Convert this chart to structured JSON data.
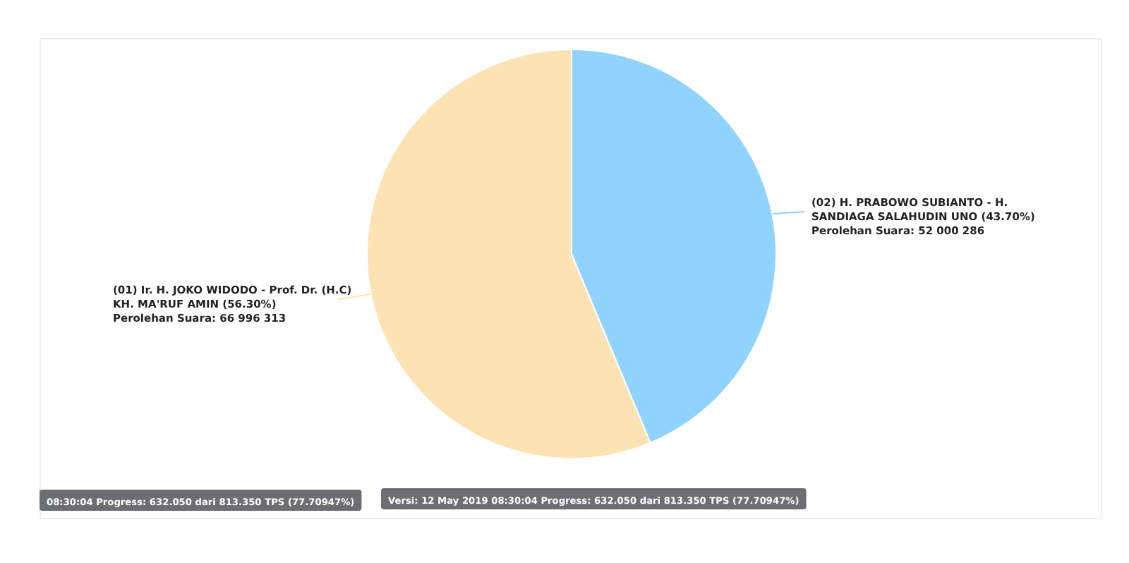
{
  "chart_data": {
    "type": "pie",
    "categories": [
      "(01) Ir. H. JOKO WIDODO - Prof. Dr. (H.C) KH. MA'RUF AMIN (56.30%)",
      "(02) H. PRABOWO SUBIANTO - H. SANDIAGA SALAHUDIN UNO (43.70%)"
    ],
    "values": [
      66996313,
      52000286
    ],
    "colors": [
      "#fde3b3",
      "#8fd3fe"
    ],
    "value_labels": [
      "Perolehan Suara: 66 996 313",
      "Perolehan Suara: 52 000 286"
    ],
    "annotations": [
      "08:30:04 Progress: 632.050 dari 813.350 TPS (77.70947%)",
      "Versi: 12 May 2019 08:30:04 Progress: 632.050 dari 813.350 TPS (77.70947%)"
    ]
  }
}
